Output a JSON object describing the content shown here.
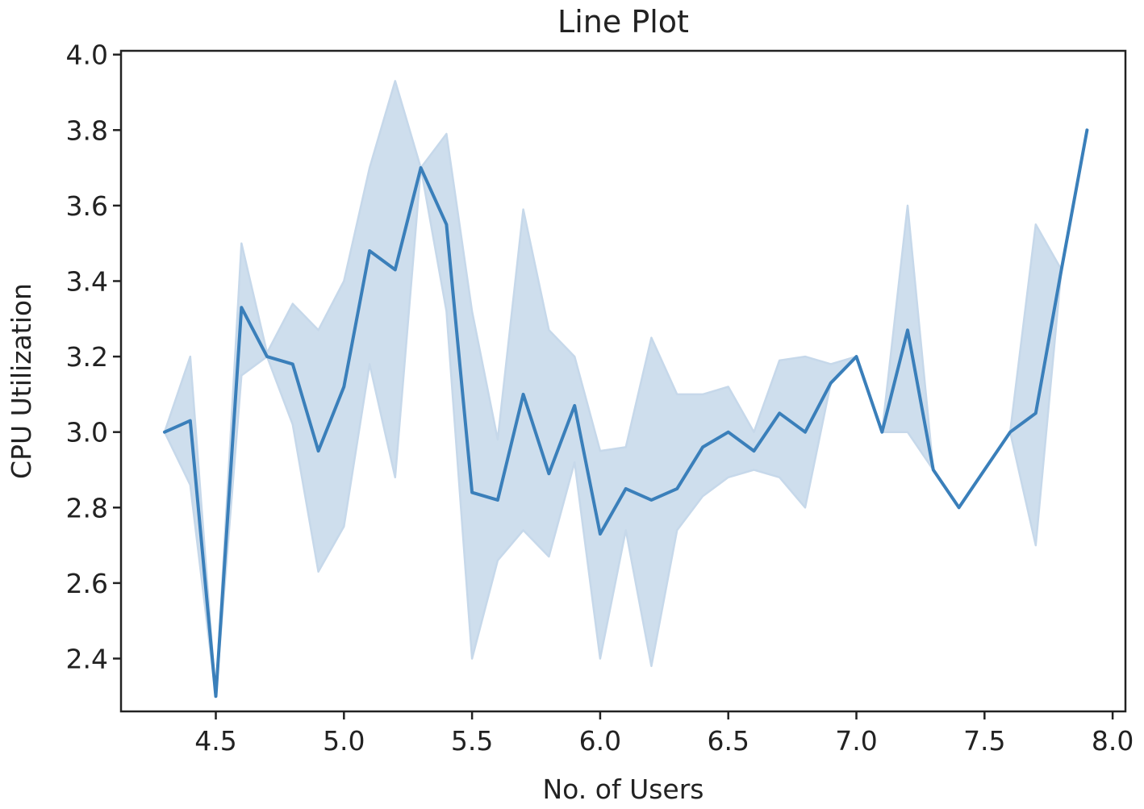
{
  "chart_data": {
    "type": "line",
    "title": "Line Plot",
    "xlabel": "No. of Users",
    "ylabel": "CPU Utilization",
    "xlim": [
      4.13,
      8.05
    ],
    "ylim": [
      2.26,
      4.01
    ],
    "xticks": [
      4.5,
      5.0,
      5.5,
      6.0,
      6.5,
      7.0,
      7.5,
      8.0
    ],
    "xtick_labels": [
      "4.5",
      "5.0",
      "5.5",
      "6.0",
      "6.5",
      "7.0",
      "7.5",
      "8.0"
    ],
    "yticks": [
      2.4,
      2.6,
      2.8,
      3.0,
      3.2,
      3.4,
      3.6,
      3.8,
      4.0
    ],
    "ytick_labels": [
      "2.4",
      "2.6",
      "2.8",
      "3.0",
      "3.2",
      "3.4",
      "3.6",
      "3.8",
      "4.0"
    ],
    "grid": false,
    "line_color": "#3a7fba",
    "band_color": "#c6d8ea",
    "series": [
      {
        "x": [
          4.3,
          4.4,
          4.5,
          4.6,
          4.7,
          4.8,
          4.9,
          5.0,
          5.1,
          5.2,
          5.3,
          5.4,
          5.5,
          5.6,
          5.7,
          5.8,
          5.9,
          6.0,
          6.1,
          6.2,
          6.3,
          6.4,
          6.5,
          6.6,
          6.7,
          6.8,
          6.9,
          7.0,
          7.1,
          7.2,
          7.3,
          7.4,
          7.5,
          7.6,
          7.7,
          7.8,
          7.9
        ],
        "y": [
          3.0,
          3.03,
          2.3,
          3.33,
          3.2,
          3.18,
          2.95,
          3.12,
          3.48,
          3.43,
          3.7,
          3.55,
          2.84,
          2.82,
          3.1,
          2.89,
          3.07,
          2.73,
          2.85,
          2.82,
          2.85,
          2.96,
          3.0,
          2.95,
          3.05,
          3.0,
          3.13,
          3.2,
          3.0,
          3.27,
          2.9,
          2.8,
          2.9,
          3.0,
          3.05,
          3.43,
          3.8
        ],
        "ci_lower": [
          3.0,
          2.86,
          2.3,
          3.15,
          3.2,
          3.02,
          2.63,
          2.75,
          3.18,
          2.88,
          3.7,
          3.32,
          2.4,
          2.66,
          2.74,
          2.67,
          2.92,
          2.4,
          2.74,
          2.38,
          2.74,
          2.83,
          2.88,
          2.9,
          2.88,
          2.8,
          3.13,
          3.2,
          3.0,
          3.0,
          2.9,
          2.8,
          2.9,
          3.0,
          2.7,
          3.43,
          3.8
        ],
        "ci_upper": [
          3.0,
          3.2,
          2.3,
          3.5,
          3.21,
          3.34,
          3.27,
          3.4,
          3.7,
          3.93,
          3.7,
          3.79,
          3.32,
          2.98,
          3.59,
          3.27,
          3.2,
          2.95,
          2.96,
          3.25,
          3.1,
          3.1,
          3.12,
          3.0,
          3.19,
          3.2,
          3.18,
          3.2,
          3.0,
          3.6,
          2.9,
          2.8,
          2.9,
          3.0,
          3.55,
          3.43,
          3.8
        ]
      }
    ]
  }
}
